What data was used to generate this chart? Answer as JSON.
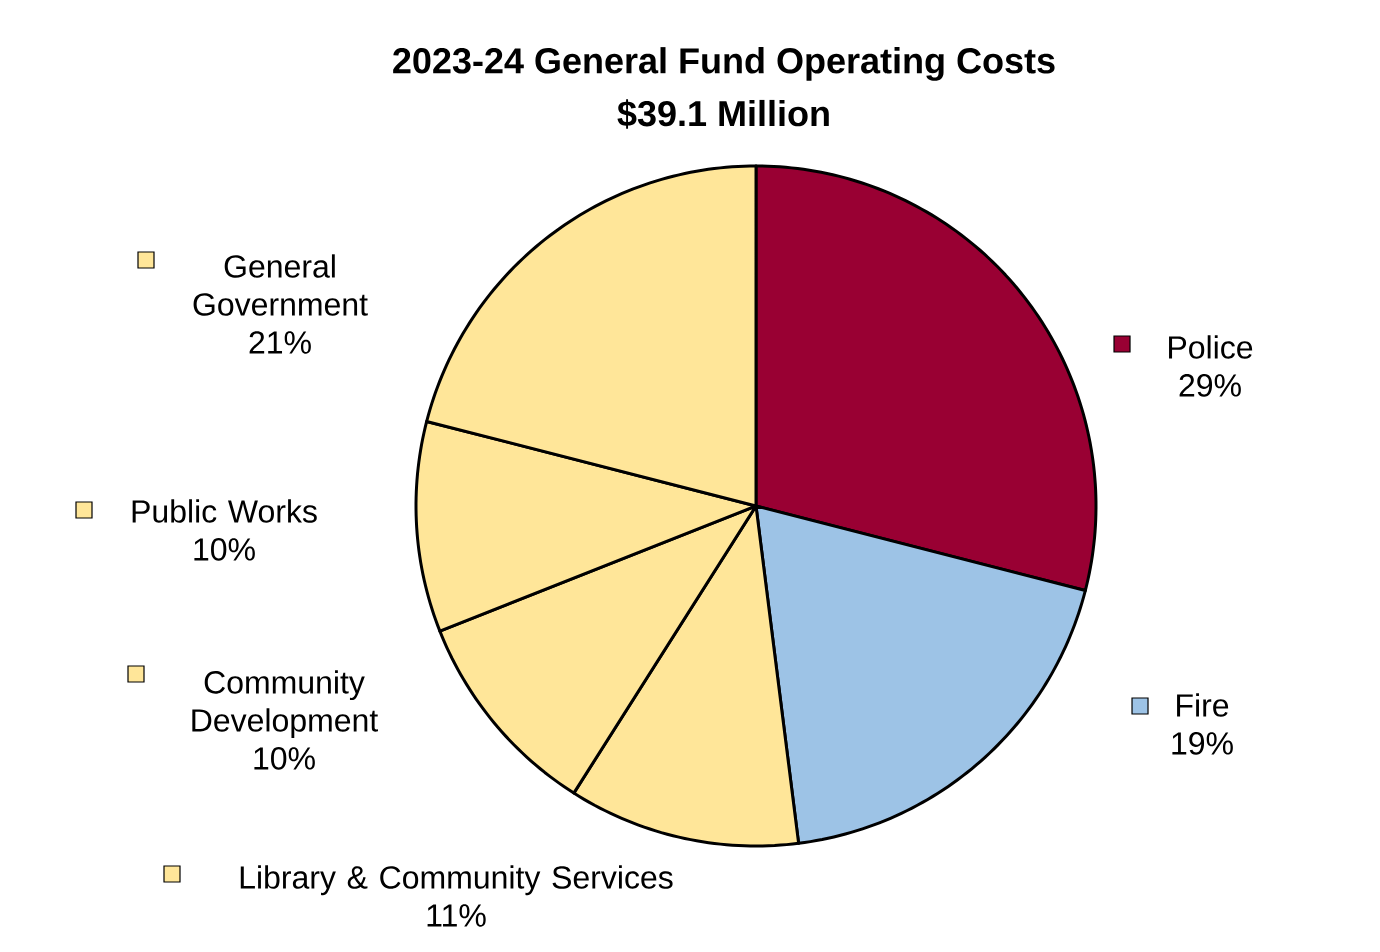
{
  "chart_data": {
    "type": "pie",
    "title": "2023-24 General Fund Operating Costs",
    "subtitle": "$39.1 Million",
    "categories": [
      "Police",
      "Fire",
      "Library & Community Services",
      "Community Development",
      "Public Works",
      "General Government"
    ],
    "values": [
      29,
      19,
      11,
      10,
      10,
      21
    ],
    "value_labels": [
      "29%",
      "19%",
      "11%",
      "10%",
      "10%",
      "21%"
    ],
    "legend": "left",
    "colors": [
      "#990033",
      "#9dc3e6",
      "#ffe699",
      "#ffe699",
      "#ffe699",
      "#ffe699"
    ]
  }
}
